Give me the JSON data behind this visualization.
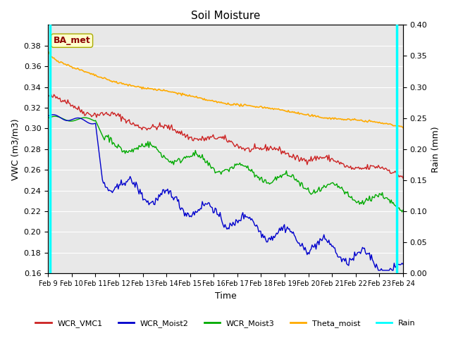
{
  "title": "Soil Moisture",
  "xlabel": "Time",
  "ylabel_left": "VWC (m3/m3)",
  "ylabel_right": "Rain (mm)",
  "ylim_left": [
    0.16,
    0.4
  ],
  "ylim_right": [
    0.0,
    0.4
  ],
  "yticks_left": [
    0.16,
    0.18,
    0.2,
    0.22,
    0.24,
    0.26,
    0.28,
    0.3,
    0.32,
    0.34,
    0.36,
    0.38
  ],
  "yticks_right": [
    0.0,
    0.05,
    0.1,
    0.15,
    0.2,
    0.25,
    0.3,
    0.35,
    0.4
  ],
  "xtick_labels": [
    "Feb 9",
    "Feb 10",
    "Feb 11",
    "Feb 12",
    "Feb 13",
    "Feb 14",
    "Feb 15",
    "Feb 16",
    "Feb 17",
    "Feb 18",
    "Feb 19",
    "Feb 20",
    "Feb 21",
    "Feb 22",
    "Feb 23",
    "Feb 24"
  ],
  "bg_color": "#e8e8e8",
  "annotation_text": "BA_met",
  "annotation_color": "#8b0000",
  "annotation_bg": "#ffffcc",
  "rain_spike1_day": 0.08,
  "rain_spike2_day": 14.72,
  "colors": {
    "WCR_VMC1": "#cc2222",
    "WCR_Moist2": "#0000cc",
    "WCR_Moist3": "#00aa00",
    "Theta_moist": "#ffaa00",
    "Rain": "#00ffff"
  }
}
